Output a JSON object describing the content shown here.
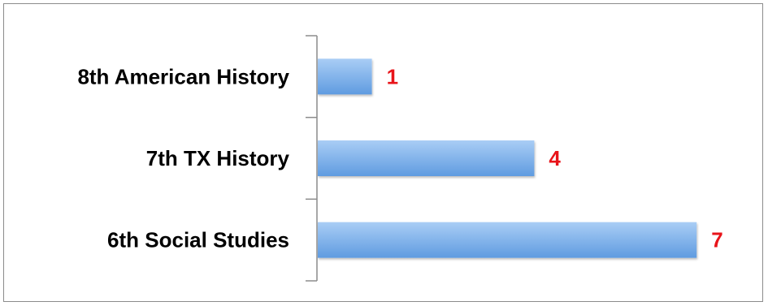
{
  "chart_data": {
    "type": "bar",
    "orientation": "horizontal",
    "categories": [
      "8th American History",
      "7th TX History",
      "6th Social Studies"
    ],
    "values": [
      1,
      4,
      7
    ],
    "title": "",
    "xlabel": "",
    "ylabel": "",
    "xlim": [
      0,
      7
    ],
    "grid": false,
    "legend": "none",
    "data_labels": true
  },
  "colors": {
    "bar_top": "#a9cdf5",
    "bar_bottom": "#5f9be0",
    "value_label": "#e8141a",
    "axis": "#8c8c8c",
    "border": "#8c8c8c"
  }
}
